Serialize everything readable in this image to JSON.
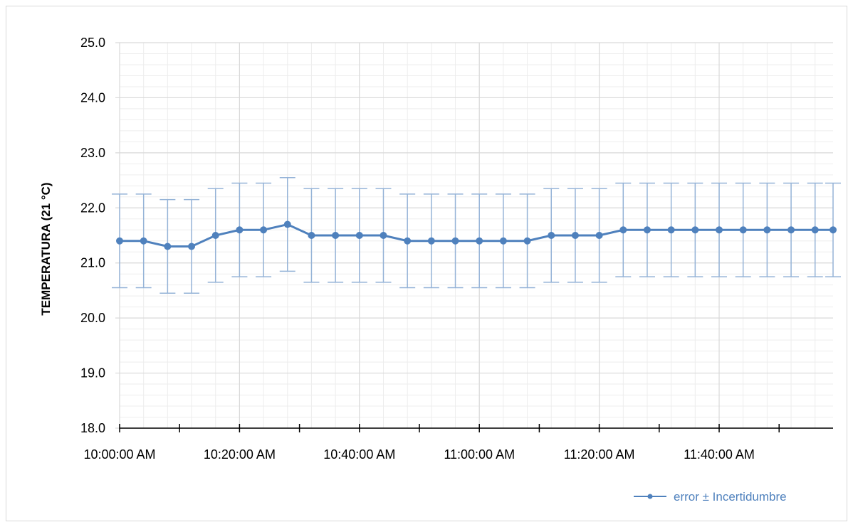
{
  "chart_data": {
    "type": "line",
    "title": "",
    "xlabel": "",
    "ylabel": "TEMPERATURA (21 °C)",
    "ylim": [
      18.0,
      25.0
    ],
    "y_ticks": [
      "18.0",
      "19.0",
      "20.0",
      "21.0",
      "22.0",
      "23.0",
      "24.0",
      "25.0"
    ],
    "x_start": "10:00:00 AM",
    "x_end": "11:59:00 AM",
    "x_tick_labels": [
      "10:00:00 AM",
      "10:20:00 AM",
      "10:40:00 AM",
      "11:00:00 AM",
      "11:20:00 AM",
      "11:40:00 AM"
    ],
    "x": [
      "10:00:00 AM",
      "10:04:00 AM",
      "10:08:00 AM",
      "10:12:00 AM",
      "10:16:00 AM",
      "10:20:00 AM",
      "10:24:00 AM",
      "10:28:00 AM",
      "10:32:00 AM",
      "10:36:00 AM",
      "10:40:00 AM",
      "10:44:00 AM",
      "10:48:00 AM",
      "10:52:00 AM",
      "10:56:00 AM",
      "11:00:00 AM",
      "11:04:00 AM",
      "11:08:00 AM",
      "11:12:00 AM",
      "11:16:00 AM",
      "11:20:00 AM",
      "11:24:00 AM",
      "11:28:00 AM",
      "11:32:00 AM",
      "11:36:00 AM",
      "11:40:00 AM",
      "11:44:00 AM",
      "11:48:00 AM",
      "11:52:00 AM",
      "11:56:00 AM",
      "11:59:00 AM"
    ],
    "series": [
      {
        "name": "error ± Incertidumbre",
        "values": [
          21.4,
          21.4,
          21.3,
          21.3,
          21.5,
          21.6,
          21.6,
          21.7,
          21.5,
          21.5,
          21.5,
          21.5,
          21.4,
          21.4,
          21.4,
          21.4,
          21.4,
          21.4,
          21.5,
          21.5,
          21.5,
          21.6,
          21.6,
          21.6,
          21.6,
          21.6,
          21.6,
          21.6,
          21.6,
          21.6,
          21.6
        ],
        "error": 0.85
      }
    ],
    "grid": true,
    "legend_position": "bottom-right",
    "colors": {
      "line": "#4f81bd",
      "error_bar": "#95b3d7",
      "grid_major": "#d9d9d9",
      "grid_minor": "#ededed"
    }
  }
}
